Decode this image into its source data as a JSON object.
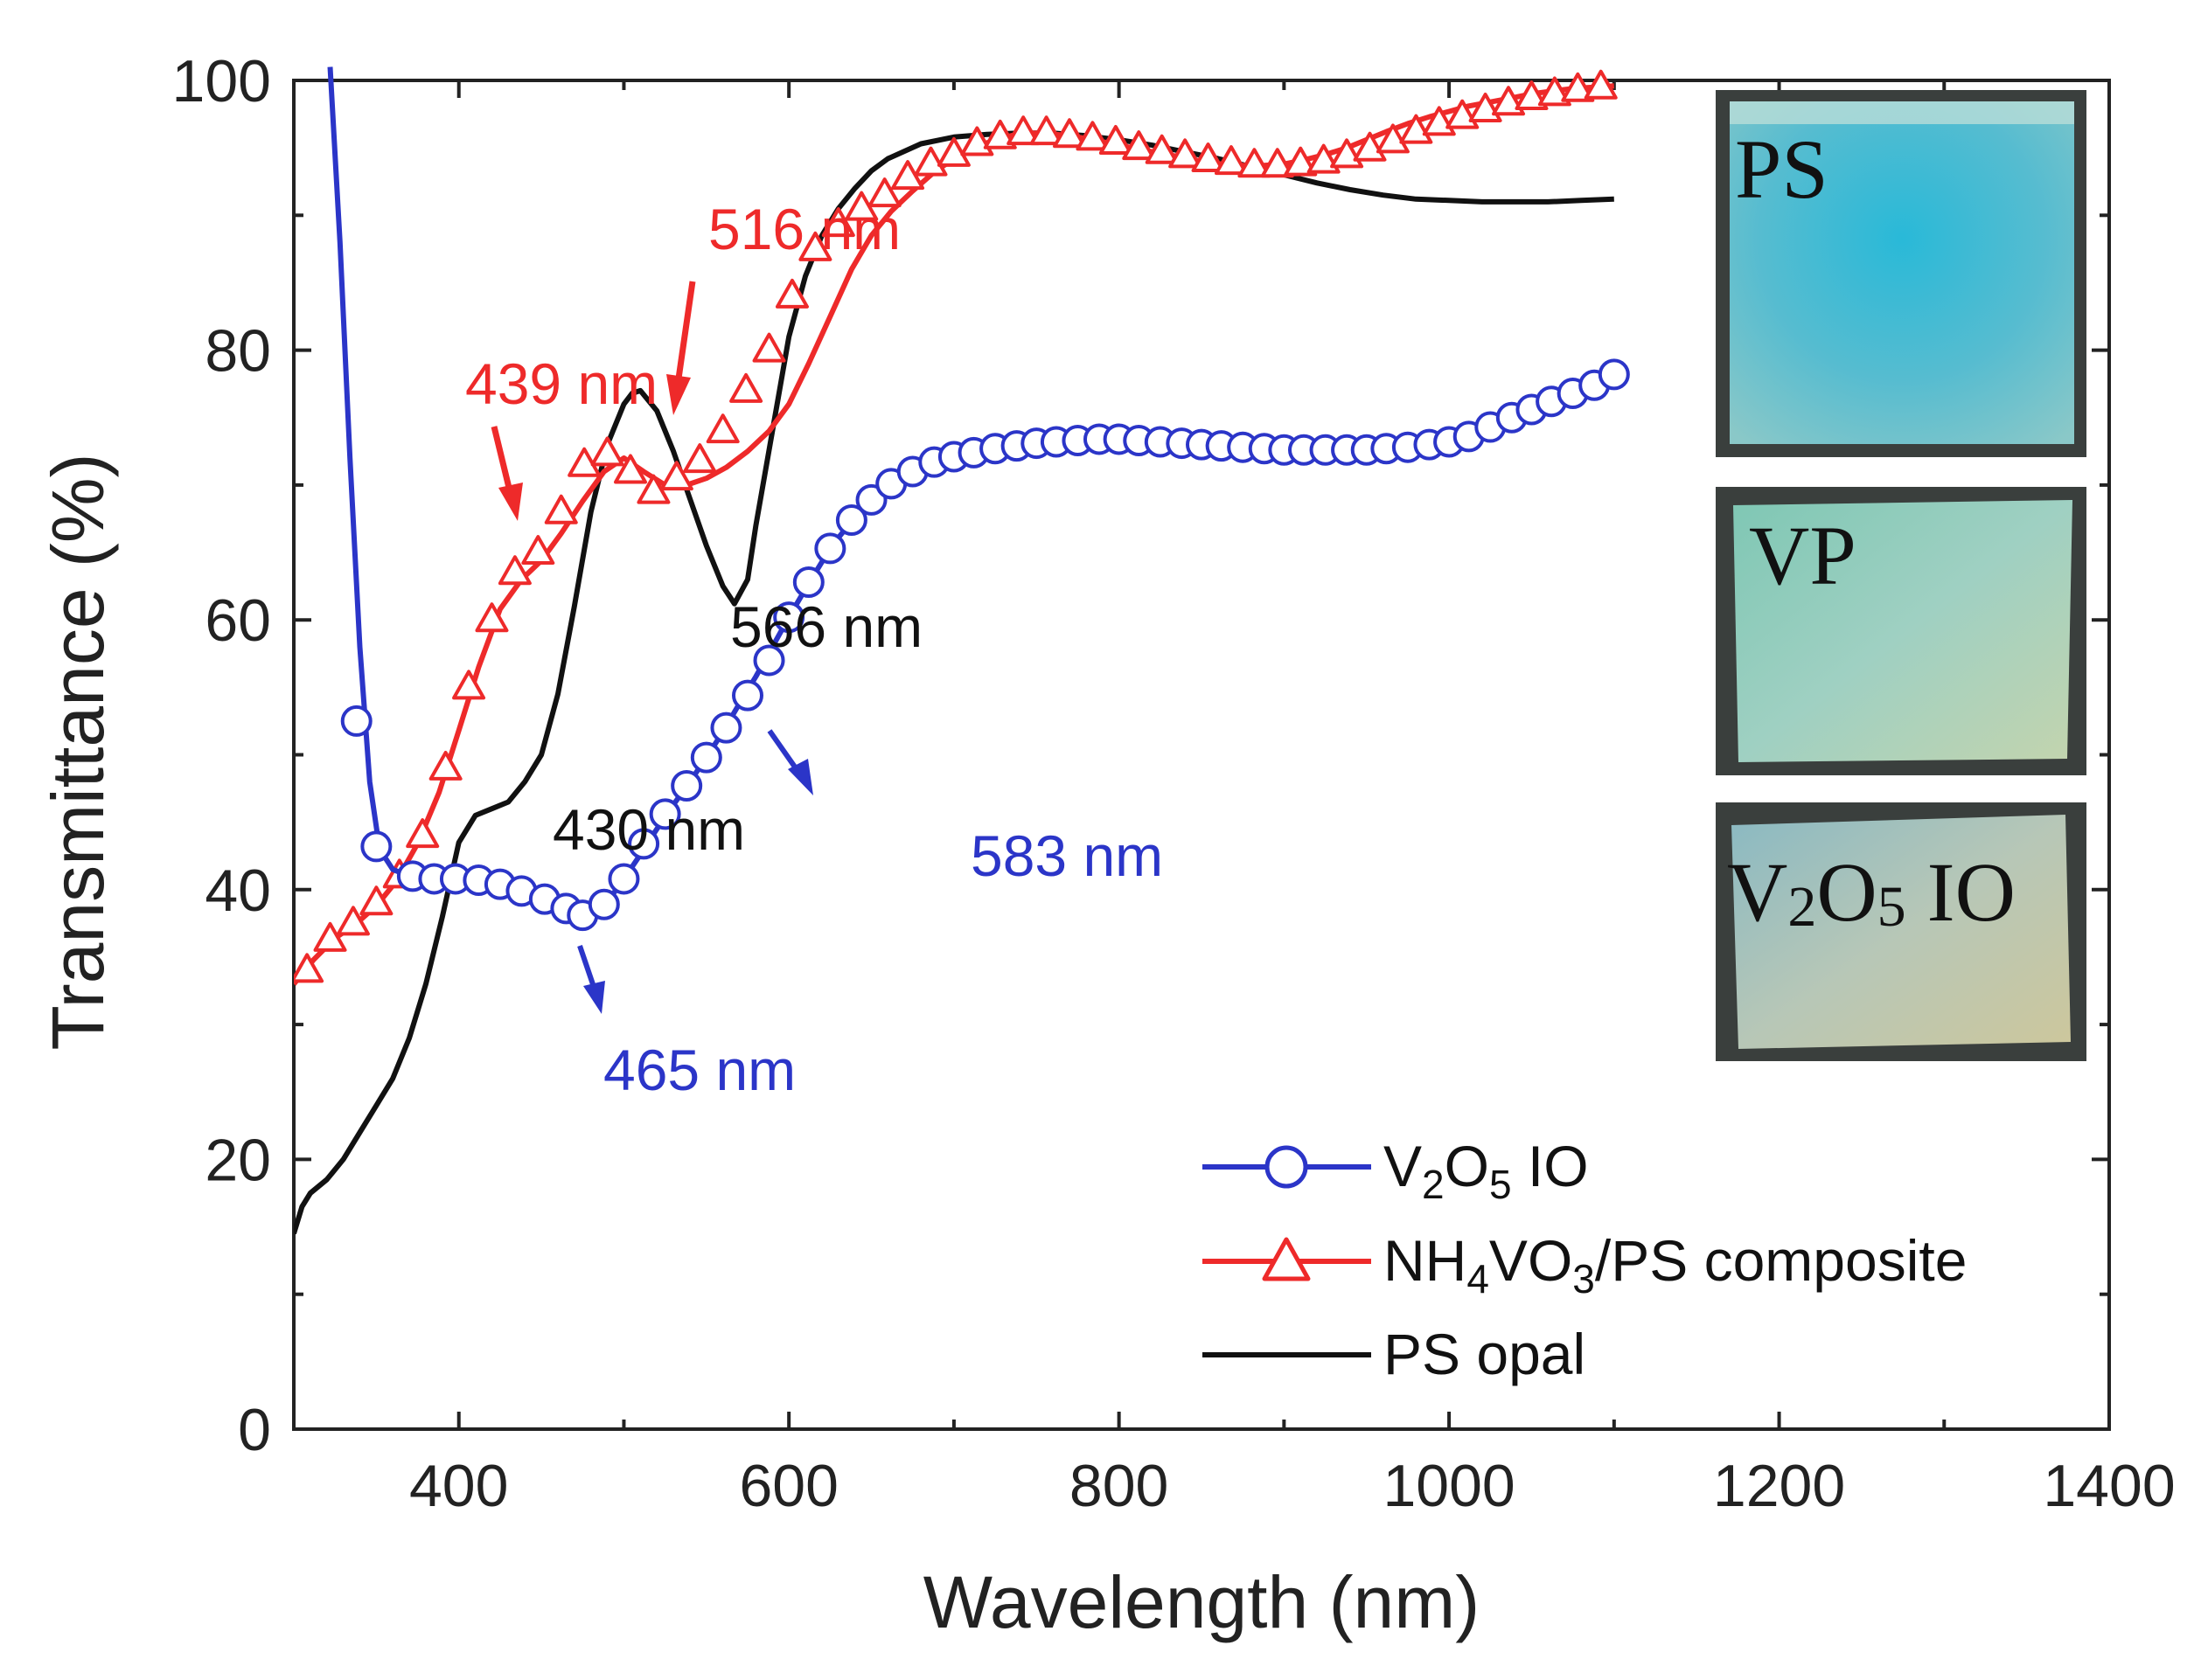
{
  "chart_data": {
    "type": "line",
    "xlabel": "Wavelength (nm)",
    "ylabel": "Transmittance (%)",
    "xlim": [
      300,
      1400
    ],
    "ylim": [
      0,
      100
    ],
    "x_ticks": [
      400,
      600,
      800,
      1000,
      1200,
      1400
    ],
    "y_ticks": [
      0,
      20,
      40,
      60,
      80,
      100
    ],
    "grid": false,
    "legend_position": "bottom-right",
    "colors": {
      "blue": "#2b35c8",
      "red": "#ee2a2a",
      "black": "#111111"
    },
    "series": [
      {
        "name": "V2O5 IO",
        "legend": {
          "pre": "V",
          "sub1": "2",
          "mid": "O",
          "sub2": "5",
          "post": " IO"
        },
        "color": "#2b35c8",
        "marker": "circle",
        "line_x": [
          322,
          328,
          334,
          340,
          346,
          352,
          360,
          370,
          380,
          390,
          400,
          410,
          420,
          430,
          440,
          450,
          460,
          470,
          480,
          490,
          500,
          510,
          520,
          530,
          540,
          550,
          560,
          570,
          580,
          590,
          600,
          610,
          620,
          630,
          640,
          650,
          660,
          670,
          680,
          690,
          700,
          720,
          740,
          760,
          780,
          800,
          820,
          840,
          860,
          880,
          900,
          920,
          940,
          960,
          980,
          1000,
          1010,
          1020,
          1030,
          1040,
          1050,
          1060,
          1070,
          1080,
          1090,
          1100
        ],
        "line_y": [
          101,
          88,
          72,
          58,
          48,
          43,
          41.5,
          41,
          40.8,
          40.8,
          40.8,
          40.6,
          40.3,
          39.8,
          39.3,
          38.8,
          38.3,
          38.0,
          38.2,
          39.1,
          40.8,
          42.6,
          44.5,
          46.3,
          48.0,
          49.8,
          51.7,
          53.8,
          55.8,
          58.0,
          60.2,
          62.3,
          64.3,
          66.1,
          67.6,
          68.9,
          70.0,
          70.9,
          71.6,
          72.1,
          72.4,
          72.8,
          73.1,
          73.3,
          73.4,
          73.4,
          73.3,
          73.1,
          72.9,
          72.7,
          72.6,
          72.6,
          72.6,
          72.7,
          72.9,
          73.2,
          73.5,
          74.0,
          74.5,
          75.0,
          75.5,
          76.0,
          76.5,
          77.0,
          77.6,
          78.2
        ],
        "marker_x": [
          338,
          350,
          372,
          385,
          398,
          412,
          425,
          438,
          452,
          465,
          475,
          488,
          500,
          512,
          525,
          538,
          550,
          562,
          575,
          588,
          600,
          612,
          625,
          638,
          650,
          662,
          675,
          688,
          700,
          712,
          725,
          738,
          750,
          762,
          775,
          788,
          800,
          812,
          825,
          838,
          850,
          862,
          875,
          888,
          900,
          912,
          925,
          938,
          950,
          962,
          975,
          988,
          1000,
          1012,
          1025,
          1038,
          1050,
          1062,
          1075,
          1088,
          1100
        ],
        "marker_y": [
          52.5,
          43.2,
          41.0,
          40.8,
          40.8,
          40.7,
          40.4,
          39.9,
          39.3,
          38.6,
          38.1,
          38.9,
          40.8,
          43.4,
          45.6,
          47.7,
          49.8,
          52.0,
          54.4,
          57.0,
          60.2,
          62.8,
          65.3,
          67.4,
          68.9,
          70.1,
          71.0,
          71.7,
          72.1,
          72.4,
          72.7,
          72.9,
          73.1,
          73.2,
          73.3,
          73.4,
          73.4,
          73.3,
          73.2,
          73.1,
          73.0,
          72.9,
          72.8,
          72.7,
          72.6,
          72.6,
          72.6,
          72.6,
          72.6,
          72.7,
          72.8,
          73.0,
          73.2,
          73.6,
          74.3,
          75.0,
          75.6,
          76.2,
          76.8,
          77.4,
          78.2
        ]
      },
      {
        "name": "NH4VO3/PS composite",
        "legend": {
          "pre": "NH",
          "sub1": "4",
          "mid": "VO",
          "sub2": "3",
          "post": "/PS composite"
        },
        "color": "#ee2a2a",
        "marker": "triangle",
        "line_x": [
          300,
          312,
          325,
          338,
          350,
          362,
          375,
          388,
          400,
          412,
          425,
          438,
          450,
          462,
          475,
          488,
          500,
          512,
          525,
          538,
          550,
          562,
          575,
          588,
          600,
          612,
          625,
          638,
          650,
          662,
          675,
          688,
          700,
          712,
          725,
          738,
          750,
          762,
          775,
          788,
          800,
          812,
          825,
          838,
          850,
          862,
          875,
          888,
          900,
          912,
          925,
          938,
          950,
          962,
          975,
          988,
          1000,
          1012,
          1025,
          1038,
          1050,
          1062,
          1075,
          1088,
          1100
        ],
        "line_y": [
          33.0,
          34.8,
          36.4,
          37.5,
          38.8,
          40.6,
          43.4,
          47.2,
          51.8,
          56.5,
          60.8,
          63.0,
          64.4,
          66.4,
          68.8,
          71.0,
          72.0,
          71.0,
          70.0,
          70.0,
          70.5,
          71.3,
          72.5,
          74.0,
          76.0,
          79.0,
          82.5,
          86.0,
          88.5,
          90.3,
          91.8,
          93.2,
          94.2,
          95.0,
          95.6,
          96.0,
          96.1,
          96.0,
          95.8,
          95.5,
          95.2,
          94.9,
          94.6,
          94.3,
          94.0,
          93.8,
          93.7,
          93.7,
          93.8,
          94.1,
          94.5,
          95.0,
          95.6,
          96.2,
          96.8,
          97.3,
          97.7,
          98.1,
          98.4,
          98.7,
          99.0,
          99.2,
          99.4,
          99.5,
          99.6
        ],
        "marker_x": [
          308,
          322,
          336,
          350,
          364,
          378,
          392,
          406,
          420,
          434,
          448,
          462,
          476,
          490,
          504,
          518,
          532,
          546,
          560,
          574,
          588,
          602,
          616,
          630,
          644,
          658,
          672,
          686,
          700,
          714,
          728,
          742,
          756,
          770,
          784,
          798,
          812,
          826,
          840,
          854,
          868,
          882,
          896,
          910,
          924,
          938,
          952,
          966,
          980,
          994,
          1008,
          1022,
          1036,
          1050,
          1064,
          1078,
          1092
        ],
        "marker_y": [
          34.0,
          36.3,
          37.5,
          39.0,
          41.0,
          44.0,
          49.0,
          55.0,
          60.0,
          63.5,
          65.0,
          68.0,
          71.5,
          72.3,
          71.0,
          69.5,
          70.5,
          71.8,
          74.0,
          77.0,
          80.0,
          84.0,
          87.5,
          89.3,
          90.5,
          91.5,
          92.8,
          93.8,
          94.5,
          95.3,
          95.8,
          96.1,
          96.1,
          95.9,
          95.7,
          95.4,
          95.0,
          94.7,
          94.4,
          94.1,
          93.9,
          93.7,
          93.7,
          93.8,
          94.0,
          94.4,
          94.9,
          95.5,
          96.2,
          96.8,
          97.3,
          97.8,
          98.3,
          98.7,
          99.0,
          99.3,
          99.5
        ]
      },
      {
        "name": "PS opal",
        "legend": {
          "pre": "PS opal",
          "sub1": "",
          "mid": "",
          "sub2": "",
          "post": ""
        },
        "color": "#111111",
        "marker": "none",
        "line_x": [
          300,
          305,
          310,
          320,
          330,
          340,
          350,
          360,
          370,
          380,
          390,
          400,
          410,
          420,
          430,
          440,
          450,
          460,
          470,
          480,
          490,
          500,
          505,
          510,
          520,
          530,
          540,
          550,
          560,
          567,
          575,
          580,
          590,
          600,
          610,
          620,
          630,
          640,
          650,
          660,
          680,
          700,
          720,
          740,
          760,
          780,
          800,
          820,
          840,
          860,
          880,
          900,
          920,
          940,
          960,
          980,
          1000,
          1020,
          1040,
          1060,
          1080,
          1100
        ],
        "line_y": [
          14.5,
          16.5,
          17.5,
          18.5,
          20.0,
          22.0,
          24.0,
          26.0,
          29.0,
          33.0,
          38.0,
          43.5,
          45.5,
          46.0,
          46.5,
          48.0,
          50.0,
          54.5,
          61.0,
          68.0,
          73.0,
          76.0,
          76.8,
          77.0,
          75.5,
          72.5,
          69.0,
          65.5,
          62.5,
          61.2,
          63.0,
          67.0,
          74.0,
          81.0,
          85.5,
          88.5,
          90.5,
          92.0,
          93.3,
          94.2,
          95.3,
          95.8,
          96.0,
          96.1,
          96.1,
          95.9,
          95.6,
          95.2,
          94.7,
          94.2,
          93.6,
          93.0,
          92.4,
          91.9,
          91.5,
          91.2,
          91.1,
          91.0,
          91.0,
          91.0,
          91.1,
          91.2
        ]
      }
    ],
    "annotations": [
      {
        "text": "516 nm",
        "color": "#ee2a2a"
      },
      {
        "text": "439 nm",
        "color": "#ee2a2a"
      },
      {
        "text": "566 nm",
        "color": "#111111"
      },
      {
        "text": "430 nm",
        "color": "#111111"
      },
      {
        "text": "583 nm",
        "color": "#2b35c8"
      },
      {
        "text": "465 nm",
        "color": "#2b35c8"
      }
    ],
    "insets": [
      {
        "label": "PS"
      },
      {
        "label": "VP"
      },
      {
        "label": "V2O5 IO",
        "parts": {
          "a": "V",
          "b": "2",
          "c": "O",
          "d": "5",
          "e": " IO"
        }
      }
    ]
  }
}
